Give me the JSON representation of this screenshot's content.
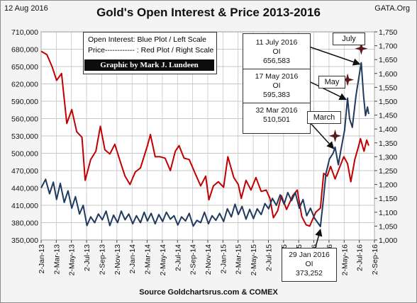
{
  "header": {
    "date": "12 Aug 2016",
    "site": "GATA.Org"
  },
  "title": "Gold's Open Interest & Price 2013-2016",
  "source": "Source Goldchartsrus.com & COMEX",
  "legend": {
    "line1": "Open Interest:  Blue Plot / Left Scale",
    "line2": "Price------------ : Red Plot / Right Scale",
    "credit": "Graphic by Mark J. Lundeen"
  },
  "annotations": {
    "oi_box": [
      "11 July 2016",
      "OI",
      "656,583",
      "17 May 2016",
      "OI",
      "595,383",
      "32 Mar 2016",
      "510,501"
    ],
    "low_box": [
      "29 Jan 2016",
      "OI",
      "373,252"
    ],
    "tags": {
      "july": "July",
      "may": "May",
      "march": "March"
    }
  },
  "colors": {
    "oi": "#1f3a5f",
    "price": "#c00000",
    "star": "#5a1a1a",
    "arrow": "#111111"
  },
  "chart_data": {
    "type": "line",
    "title": "Gold's Open Interest & Price 2013-2016",
    "grid": true,
    "x_tick_labels": [
      "2-Jan-13",
      "2-Mar-13",
      "2-May-13",
      "2-Jul-13",
      "2-Sep-13",
      "2-Nov-13",
      "2-Jan-14",
      "2-Mar-14",
      "2-May-14",
      "2-Jul-14",
      "2-Sep-14",
      "2-Nov-14",
      "2-Jan-15",
      "2-Mar-15",
      "2-May-15",
      "2-Jul-15",
      "2-Sep-15",
      "2-Nov-15",
      "2-Jan-16",
      "2-Mar-16",
      "2-May-16",
      "2-Jul-16",
      "2-Sep-16"
    ],
    "x_range": [
      "2013-01-02",
      "2016-09-02"
    ],
    "y_left": {
      "label": "Open Interest",
      "range": [
        350000,
        710000
      ],
      "ticks": [
        "710,000",
        "680,000",
        "650,000",
        "620,000",
        "590,000",
        "560,000",
        "530,000",
        "500,000",
        "470,000",
        "440,000",
        "410,000",
        "380,000",
        "350,000"
      ]
    },
    "y_right": {
      "label": "Price",
      "range": [
        1000,
        1750
      ],
      "ticks": [
        "1,750",
        "1,700",
        "1,650",
        "1,600",
        "1,550",
        "1,500",
        "1,450",
        "1,400",
        "1,350",
        "1,300",
        "1,250",
        "1,200",
        "1,150",
        "1,100",
        "1,050",
        "1,000"
      ]
    },
    "series": [
      {
        "name": "Open Interest",
        "axis": "left",
        "points": [
          [
            "2013-01-02",
            440000
          ],
          [
            "2013-01-20",
            455000
          ],
          [
            "2013-02-05",
            430000
          ],
          [
            "2013-02-20",
            450000
          ],
          [
            "2013-03-05",
            420000
          ],
          [
            "2013-03-20",
            448000
          ],
          [
            "2013-04-05",
            415000
          ],
          [
            "2013-04-20",
            435000
          ],
          [
            "2013-05-05",
            405000
          ],
          [
            "2013-05-20",
            425000
          ],
          [
            "2013-06-05",
            395000
          ],
          [
            "2013-06-20",
            410000
          ],
          [
            "2013-07-05",
            375000
          ],
          [
            "2013-07-20",
            390000
          ],
          [
            "2013-08-05",
            380000
          ],
          [
            "2013-08-20",
            395000
          ],
          [
            "2013-09-05",
            385000
          ],
          [
            "2013-09-20",
            400000
          ],
          [
            "2013-10-05",
            375000
          ],
          [
            "2013-10-20",
            393000
          ],
          [
            "2013-11-05",
            380000
          ],
          [
            "2013-11-20",
            400000
          ],
          [
            "2013-12-05",
            385000
          ],
          [
            "2013-12-20",
            395000
          ],
          [
            "2014-01-05",
            378000
          ],
          [
            "2014-01-20",
            392000
          ],
          [
            "2014-02-05",
            380000
          ],
          [
            "2014-02-20",
            398000
          ],
          [
            "2014-03-05",
            383000
          ],
          [
            "2014-03-20",
            396000
          ],
          [
            "2014-04-05",
            378000
          ],
          [
            "2014-04-20",
            394000
          ],
          [
            "2014-05-05",
            382000
          ],
          [
            "2014-05-20",
            398000
          ],
          [
            "2014-06-05",
            386000
          ],
          [
            "2014-06-20",
            392000
          ],
          [
            "2014-07-05",
            376000
          ],
          [
            "2014-07-20",
            390000
          ],
          [
            "2014-08-05",
            383000
          ],
          [
            "2014-08-20",
            396000
          ],
          [
            "2014-09-05",
            374000
          ],
          [
            "2014-09-20",
            384000
          ],
          [
            "2014-10-05",
            380000
          ],
          [
            "2014-10-20",
            398000
          ],
          [
            "2014-11-05",
            378000
          ],
          [
            "2014-11-20",
            392000
          ],
          [
            "2014-12-05",
            384000
          ],
          [
            "2014-12-20",
            396000
          ],
          [
            "2015-01-05",
            382000
          ],
          [
            "2015-01-20",
            404000
          ],
          [
            "2015-02-05",
            390000
          ],
          [
            "2015-02-20",
            412000
          ],
          [
            "2015-03-05",
            394000
          ],
          [
            "2015-03-20",
            408000
          ],
          [
            "2015-04-05",
            386000
          ],
          [
            "2015-04-20",
            403000
          ],
          [
            "2015-05-05",
            387000
          ],
          [
            "2015-05-20",
            404000
          ],
          [
            "2015-06-05",
            394000
          ],
          [
            "2015-06-20",
            413000
          ],
          [
            "2015-07-05",
            404000
          ],
          [
            "2015-07-20",
            422000
          ],
          [
            "2015-08-05",
            410000
          ],
          [
            "2015-08-20",
            428000
          ],
          [
            "2015-09-05",
            412000
          ],
          [
            "2015-09-20",
            432000
          ],
          [
            "2015-10-05",
            418000
          ],
          [
            "2015-10-20",
            432000
          ],
          [
            "2015-11-05",
            405000
          ],
          [
            "2015-11-20",
            420000
          ],
          [
            "2015-12-05",
            392000
          ],
          [
            "2015-12-20",
            405000
          ],
          [
            "2016-01-05",
            388000
          ],
          [
            "2016-01-29",
            373252
          ],
          [
            "2016-02-10",
            420000
          ],
          [
            "2016-02-20",
            465000
          ],
          [
            "2016-03-05",
            490000
          ],
          [
            "2016-03-20",
            500000
          ],
          [
            "2016-03-28",
            510501
          ],
          [
            "2016-04-10",
            480000
          ],
          [
            "2016-04-20",
            505000
          ],
          [
            "2016-05-05",
            540000
          ],
          [
            "2016-05-17",
            595383
          ],
          [
            "2016-05-25",
            560000
          ],
          [
            "2016-06-05",
            545000
          ],
          [
            "2016-06-20",
            600000
          ],
          [
            "2016-07-01",
            630000
          ],
          [
            "2016-07-11",
            656583
          ],
          [
            "2016-07-20",
            600000
          ],
          [
            "2016-07-28",
            565000
          ],
          [
            "2016-08-05",
            580000
          ],
          [
            "2016-08-10",
            568000
          ]
        ]
      },
      {
        "name": "Price",
        "axis": "right",
        "points": [
          [
            "2013-01-02",
            1680
          ],
          [
            "2013-01-25",
            1668
          ],
          [
            "2013-02-15",
            1625
          ],
          [
            "2013-03-05",
            1575
          ],
          [
            "2013-03-25",
            1600
          ],
          [
            "2013-04-15",
            1420
          ],
          [
            "2013-05-05",
            1470
          ],
          [
            "2013-05-25",
            1390
          ],
          [
            "2013-06-15",
            1370
          ],
          [
            "2013-06-28",
            1215
          ],
          [
            "2013-07-20",
            1290
          ],
          [
            "2013-08-10",
            1320
          ],
          [
            "2013-08-28",
            1410
          ],
          [
            "2013-09-15",
            1325
          ],
          [
            "2013-10-05",
            1310
          ],
          [
            "2013-10-25",
            1345
          ],
          [
            "2013-11-15",
            1285
          ],
          [
            "2013-12-05",
            1230
          ],
          [
            "2013-12-25",
            1200
          ],
          [
            "2014-01-15",
            1245
          ],
          [
            "2014-02-05",
            1260
          ],
          [
            "2014-03-05",
            1340
          ],
          [
            "2014-03-17",
            1380
          ],
          [
            "2014-04-05",
            1300
          ],
          [
            "2014-04-25",
            1300
          ],
          [
            "2014-05-15",
            1295
          ],
          [
            "2014-06-05",
            1250
          ],
          [
            "2014-06-25",
            1320
          ],
          [
            "2014-07-10",
            1340
          ],
          [
            "2014-07-30",
            1295
          ],
          [
            "2014-08-20",
            1290
          ],
          [
            "2014-09-15",
            1235
          ],
          [
            "2014-10-05",
            1195
          ],
          [
            "2014-10-25",
            1230
          ],
          [
            "2014-11-07",
            1145
          ],
          [
            "2014-11-25",
            1195
          ],
          [
            "2014-12-15",
            1210
          ],
          [
            "2015-01-05",
            1190
          ],
          [
            "2015-01-22",
            1300
          ],
          [
            "2015-02-15",
            1225
          ],
          [
            "2015-03-05",
            1200
          ],
          [
            "2015-03-17",
            1150
          ],
          [
            "2015-04-05",
            1215
          ],
          [
            "2015-04-25",
            1180
          ],
          [
            "2015-05-15",
            1225
          ],
          [
            "2015-06-05",
            1175
          ],
          [
            "2015-06-25",
            1180
          ],
          [
            "2015-07-10",
            1150
          ],
          [
            "2015-07-24",
            1080
          ],
          [
            "2015-08-10",
            1105
          ],
          [
            "2015-08-25",
            1160
          ],
          [
            "2015-09-15",
            1110
          ],
          [
            "2015-10-10",
            1160
          ],
          [
            "2015-10-28",
            1180
          ],
          [
            "2015-11-15",
            1085
          ],
          [
            "2015-12-02",
            1055
          ],
          [
            "2015-12-17",
            1050
          ],
          [
            "2016-01-10",
            1100
          ],
          [
            "2016-01-29",
            1115
          ],
          [
            "2016-02-11",
            1240
          ],
          [
            "2016-02-25",
            1230
          ],
          [
            "2016-03-10",
            1265
          ],
          [
            "2016-03-28",
            1220
          ],
          [
            "2016-04-12",
            1255
          ],
          [
            "2016-05-02",
            1300
          ],
          [
            "2016-05-17",
            1275
          ],
          [
            "2016-05-30",
            1210
          ],
          [
            "2016-06-15",
            1290
          ],
          [
            "2016-07-01",
            1340
          ],
          [
            "2016-07-08",
            1365
          ],
          [
            "2016-07-22",
            1320
          ],
          [
            "2016-08-02",
            1360
          ],
          [
            "2016-08-10",
            1340
          ]
        ]
      }
    ],
    "markers": [
      {
        "date": "2016-03-28",
        "oi": 510501,
        "label": "March"
      },
      {
        "date": "2016-05-17",
        "oi": 595383,
        "label": "May"
      },
      {
        "date": "2016-07-11",
        "oi": 656583,
        "label": "July"
      }
    ]
  }
}
